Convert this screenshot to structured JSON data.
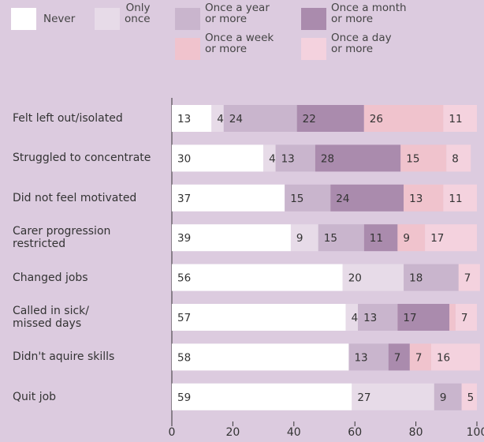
{
  "chart_data": {
    "type": "stacked-bar-horizontal",
    "categories": [
      "Felt left out/isolated",
      "Struggled to concentrate",
      "Did not feel motivated",
      "Carer progression\nrestricted",
      "Changed jobs",
      "Called in sick/\nmissed days",
      "Didn't aquire skills",
      "Quit job"
    ],
    "series": [
      {
        "name": "Never",
        "color": "#ffffff",
        "values": [
          13,
          30,
          37,
          39,
          56,
          57,
          58,
          59
        ]
      },
      {
        "name": "Only\nonce",
        "color": "#e7dbe8",
        "values": [
          4,
          4,
          null,
          9,
          20,
          4,
          null,
          27
        ]
      },
      {
        "name": "Once a year\nor more",
        "color": "#c9b5cd",
        "values": [
          24,
          13,
          15,
          15,
          18,
          13,
          13,
          9
        ]
      },
      {
        "name": "Once a month\nor more",
        "color": "#aa8bad",
        "values": [
          22,
          28,
          24,
          11,
          null,
          17,
          7,
          null
        ]
      },
      {
        "name": "Once a week\nor more",
        "color": "#f0c3cd",
        "values": [
          26,
          15,
          13,
          9,
          null,
          2,
          7,
          null
        ]
      },
      {
        "name": "Once a day\nor more",
        "color": "#f4d2de",
        "values": [
          11,
          8,
          11,
          17,
          7,
          7,
          16,
          5
        ]
      }
    ],
    "xlim": [
      0,
      100
    ],
    "xticks": [
      0,
      20,
      40,
      60,
      80,
      100
    ]
  }
}
